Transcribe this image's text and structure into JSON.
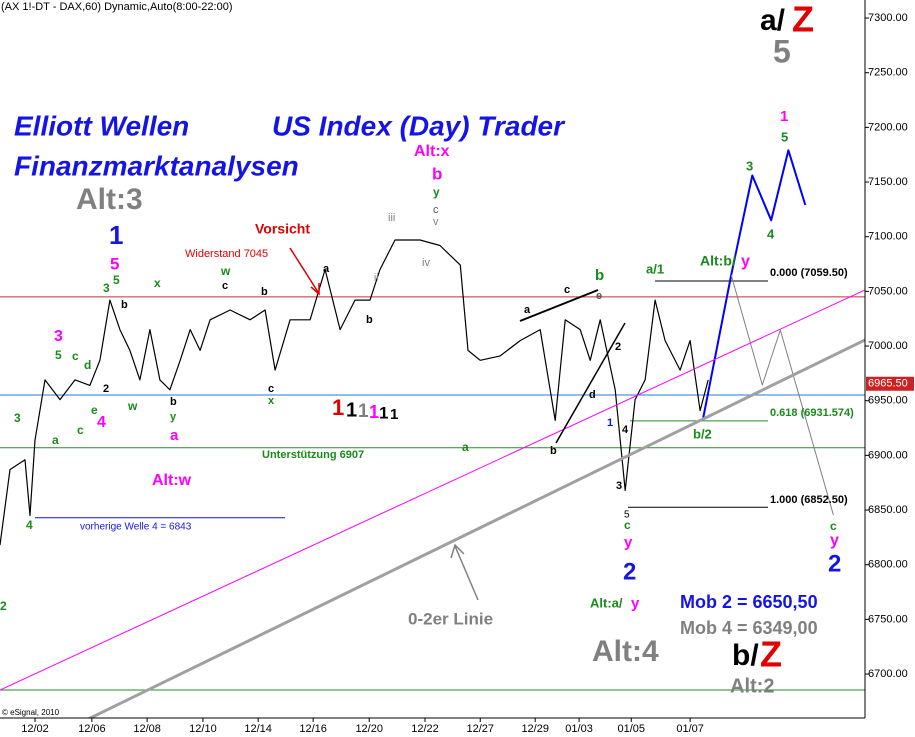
{
  "chart_data": {
    "type": "line",
    "title": "(AX 1!-DT - DAX,60) Dynamic,Auto(8:00-22:00)",
    "xlim": [
      -1.26,
      29.9
    ],
    "ylim": [
      6659.8,
      7316.5
    ],
    "xticks": [
      {
        "value": 0,
        "label": "12/02"
      },
      {
        "value": 2.05,
        "label": "12/06"
      },
      {
        "value": 4.04,
        "label": "12/08"
      },
      {
        "value": 6.05,
        "label": "12/10"
      },
      {
        "value": 8.04,
        "label": "12/14"
      },
      {
        "value": 10.02,
        "label": "12/16"
      },
      {
        "value": 12.04,
        "label": "12/20"
      },
      {
        "value": 14.05,
        "label": "12/22"
      },
      {
        "value": 16.04,
        "label": "12/27"
      },
      {
        "value": 18.02,
        "label": "12/29"
      },
      {
        "value": 19.6,
        "label": "01/03"
      },
      {
        "value": 21.48,
        "label": "01/05"
      },
      {
        "value": 23.6,
        "label": "01/07"
      }
    ],
    "yticks": [
      {
        "value": 6700,
        "label": "6700.00"
      },
      {
        "value": 6750,
        "label": "6750.00"
      },
      {
        "value": 6800,
        "label": "6800.00"
      },
      {
        "value": 6850,
        "label": "6850.00"
      },
      {
        "value": 6900,
        "label": "6900.00"
      },
      {
        "value": 6950,
        "label": "6950.00"
      },
      {
        "value": 7000,
        "label": "7000.00"
      },
      {
        "value": 7050,
        "label": "7050.00"
      },
      {
        "value": 7100,
        "label": "7100.00"
      },
      {
        "value": 7150,
        "label": "7150.00"
      },
      {
        "value": 7200,
        "label": "7200.00"
      },
      {
        "value": 7250,
        "label": "7250.00"
      },
      {
        "value": 7300,
        "label": "7300.00"
      }
    ],
    "series": [
      {
        "color": "#000000",
        "x": [
          -1.26,
          -0.9,
          -0.36,
          -0.18,
          0,
          0.36,
          0.9,
          1.44,
          1.98,
          2.34,
          2.7,
          3.06,
          3.42,
          3.78,
          4.14,
          4.5,
          4.86,
          5.23,
          5.59,
          5.95,
          6.31,
          7.03,
          7.75,
          8.29,
          8.65,
          9.19,
          9.91,
          10.45,
          10.99,
          11.53,
          12.07,
          12.43,
          12.97,
          13.87,
          14.59,
          15.32,
          15.6,
          16.04,
          16.76,
          17.48,
          18.2,
          18.74,
          19.1,
          19.64,
          20,
          20.36,
          20.9,
          21.26,
          21.62,
          21.98,
          22.34,
          22.7,
          23.24,
          23.6,
          23.96,
          24.25
        ],
        "values": [
          6818,
          6887,
          6896,
          6845,
          6914,
          6969,
          6951,
          6969,
          6964,
          6987,
          7042,
          7015,
          6996,
          6969,
          7015,
          6969,
          6960,
          6987,
          7015,
          6996,
          7024,
          7033,
          7024,
          7033,
          6978,
          7024,
          7024,
          7070,
          7015,
          7042,
          7042,
          7070,
          7097,
          7097,
          7092,
          7074,
          6996,
          6987,
          6991,
          7005,
          7015,
          6932,
          7024,
          7015,
          6987,
          7024,
          6960,
          6868,
          6951,
          6969,
          7042,
          7005,
          6978,
          7005,
          6941,
          6969
        ]
      },
      {
        "color": "#0000ff",
        "x": [
          24.07,
          25.08,
          25.84,
          26.52,
          27.14,
          27.75
        ],
        "values": [
          6934.2,
          7065,
          7156,
          7115,
          7179,
          7129
        ]
      },
      {
        "color": "#808080",
        "x": [
          25.08,
          26.2,
          26.85,
          28.76
        ],
        "values": [
          7065,
          6964.4,
          7014.7,
          6845.5
        ]
      },
      {
        "color": "#a0a0a0",
        "x": [
          -1.26,
          29.9
        ],
        "values": [
          6619.5,
          7005.5
        ]
      },
      {
        "color": "#ff00ff",
        "x": [
          -1.26,
          29.9
        ],
        "values": [
          6685.4,
          7051.3
        ]
      }
    ],
    "levels": [
      {
        "value": 7045,
        "color": "#c03030"
      },
      {
        "value": 6955.2,
        "color": "#1e7fd8"
      },
      {
        "value": 6907,
        "color": "#2a8a2a"
      },
      {
        "value": 6843,
        "color": "#1414e6"
      },
      {
        "value": 7059.5,
        "color": "#000000"
      },
      {
        "value": 6931.574,
        "color": "#2a8a2a"
      },
      {
        "value": 6852.5,
        "color": "#000000"
      },
      {
        "value": 6685.4,
        "color": "#2a8a2a"
      }
    ],
    "last_price": {
      "value": 6965.5,
      "label": "6965.50",
      "color": "#cc2222"
    },
    "annotations": [
      {
        "text": "Elliott Wellen",
        "color": "#1414e6"
      },
      {
        "text": "US Index (Day) Trader",
        "color": "#1414e6"
      },
      {
        "text": "Finanzmarktanalysen",
        "color": "#1414e6"
      },
      {
        "text": "a/",
        "color": "#000000"
      },
      {
        "text": "Z",
        "color": "#e00000"
      },
      {
        "text": "5",
        "color": "#808080"
      },
      {
        "text": "Alt:3",
        "color": "#808080"
      },
      {
        "text": "1",
        "color": "#1414e6"
      },
      {
        "text": "5",
        "color": "#ff00ff"
      },
      {
        "text": "Alt:x",
        "color": "#ff00ff"
      },
      {
        "text": "b",
        "color": "#ff00ff"
      },
      {
        "text": "y",
        "color": "#1a8a1a"
      },
      {
        "text": "c",
        "color": "#555555"
      },
      {
        "text": "v",
        "color": "#808080"
      },
      {
        "text": "iii",
        "color": "#808080"
      },
      {
        "text": "iv",
        "color": "#808080"
      },
      {
        "text": "Vorsicht",
        "color": "#e00000"
      },
      {
        "text": "Widerstand 7045",
        "color": "#e00000"
      },
      {
        "text": "w",
        "color": "#1a8a1a"
      },
      {
        "text": "c",
        "color": "#000000"
      },
      {
        "text": "x",
        "color": "#1a8a1a"
      },
      {
        "text": "b",
        "color": "#000000"
      },
      {
        "text": "3",
        "color": "#1a8a1a"
      },
      {
        "text": "5",
        "color": "#1a8a1a"
      },
      {
        "text": "b",
        "color": "#000000"
      },
      {
        "text": "a",
        "color": "#000000"
      },
      {
        "text": "ii",
        "color": "#808080"
      },
      {
        "text": "b",
        "color": "#000000"
      },
      {
        "text": "a",
        "color": "#000000"
      },
      {
        "text": "c",
        "color": "#000000"
      },
      {
        "text": "e",
        "color": "#555555"
      },
      {
        "text": "b",
        "color": "#1a8a1a"
      },
      {
        "text": "a/1",
        "color": "#1a8a1a"
      },
      {
        "text": "Alt:b/",
        "color": "#1a8a1a"
      },
      {
        "text": "y",
        "color": "#ff00ff"
      },
      {
        "text": "0.000 (7059.50)",
        "color": "#000000"
      },
      {
        "text": "1",
        "color": "#ff00ff"
      },
      {
        "text": "5",
        "color": "#1a8a1a"
      },
      {
        "text": "3",
        "color": "#1a8a1a"
      },
      {
        "text": "4",
        "color": "#1a8a1a"
      },
      {
        "text": "3",
        "color": "#ff00ff"
      },
      {
        "text": "5",
        "color": "#1a8a1a"
      },
      {
        "text": "c",
        "color": "#1a8a1a"
      },
      {
        "text": "d",
        "color": "#1a8a1a"
      },
      {
        "text": "2",
        "color": "#000000"
      },
      {
        "text": "e",
        "color": "#1a8a1a"
      },
      {
        "text": "c",
        "color": "#1a8a1a"
      },
      {
        "text": "a",
        "color": "#1a8a1a"
      },
      {
        "text": "4",
        "color": "#ff00ff"
      },
      {
        "text": "3",
        "color": "#1a8a1a"
      },
      {
        "text": "w",
        "color": "#1a8a1a"
      },
      {
        "text": "b",
        "color": "#000000"
      },
      {
        "text": "y",
        "color": "#1a8a1a"
      },
      {
        "text": "a",
        "color": "#ff00ff"
      },
      {
        "text": "c",
        "color": "#000000"
      },
      {
        "text": "x",
        "color": "#1a8a1a"
      },
      {
        "text": "1",
        "color": "#e00000"
      },
      {
        "text": "1",
        "color": "#000000"
      },
      {
        "text": "1",
        "color": "#808080"
      },
      {
        "text": "1",
        "color": "#ff00ff"
      },
      {
        "text": "1",
        "color": "#000000"
      },
      {
        "text": "1",
        "color": "#000000"
      },
      {
        "text": "Unterstützung 6907",
        "color": "#1a8a1a"
      },
      {
        "text": "a",
        "color": "#1a8a1a"
      },
      {
        "text": "Alt:w",
        "color": "#ff00ff"
      },
      {
        "text": "4",
        "color": "#1a8a1a"
      },
      {
        "text": "vorherige Welle 4 = 6843",
        "color": "#1414e6"
      },
      {
        "text": "2",
        "color": "#1a8a1a"
      },
      {
        "text": "b",
        "color": "#000000"
      },
      {
        "text": "d",
        "color": "#000000"
      },
      {
        "text": "1",
        "color": "#1414e6"
      },
      {
        "text": "2",
        "color": "#000000"
      },
      {
        "text": "4",
        "color": "#000000"
      },
      {
        "text": "3",
        "color": "#000000"
      },
      {
        "text": "5",
        "color": "#000000"
      },
      {
        "text": "c",
        "color": "#1a8a1a"
      },
      {
        "text": "y",
        "color": "#ff00ff"
      },
      {
        "text": "2",
        "color": "#1414e6"
      },
      {
        "text": "Alt:a/",
        "color": "#1a8a1a"
      },
      {
        "text": "y",
        "color": "#ff00ff"
      },
      {
        "text": "b/2",
        "color": "#1a8a1a"
      },
      {
        "text": "0.618 (6931.574)",
        "color": "#1a8a1a"
      },
      {
        "text": "1.000 (6852.50)",
        "color": "#000000"
      },
      {
        "text": "c",
        "color": "#1a8a1a"
      },
      {
        "text": "y",
        "color": "#ff00ff"
      },
      {
        "text": "2",
        "color": "#1414e6"
      },
      {
        "text": "Mob 2 = 6650,50",
        "color": "#1414e6"
      },
      {
        "text": "Mob 4 = 6349,00",
        "color": "#808080"
      },
      {
        "text": "0-2er Linie",
        "color": "#808080"
      },
      {
        "text": "Alt:4",
        "color": "#808080"
      },
      {
        "text": "b/",
        "color": "#000000"
      },
      {
        "text": "Z",
        "color": "#e00000"
      },
      {
        "text": "Alt:2",
        "color": "#808080"
      },
      {
        "text": "© eSignal, 2010",
        "color": "#000000"
      }
    ]
  }
}
